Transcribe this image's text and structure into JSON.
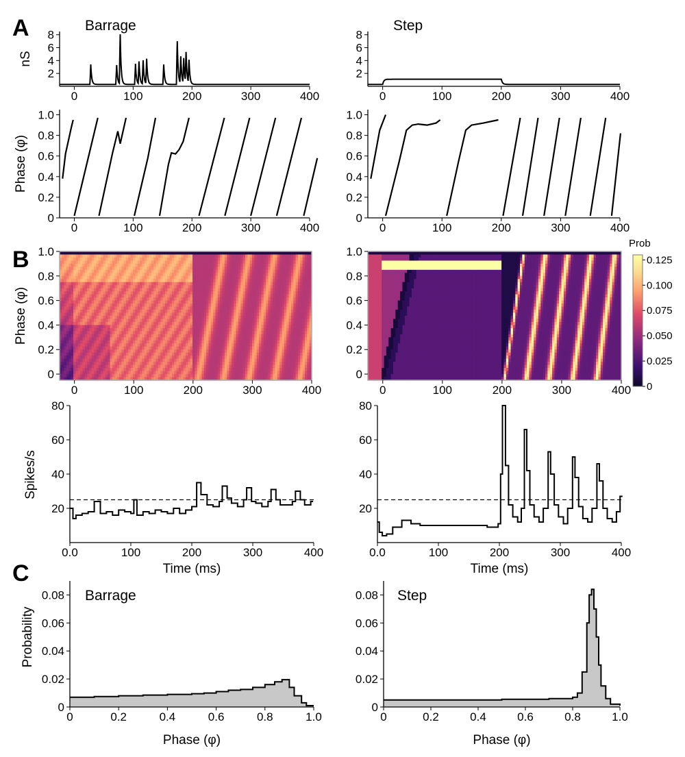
{
  "figure": {
    "panel_labels": [
      "A",
      "B",
      "C"
    ],
    "colorbar": {
      "title": "Prob",
      "ticks": [
        "0.125",
        "0.100",
        "0.075",
        "0.050",
        "0.025",
        "0"
      ],
      "range": [
        0,
        0.13
      ]
    },
    "colors": {
      "line": "#000000",
      "fill": "#c8c8c8",
      "heat_low": "#0d0829",
      "heat_high": "#fcffa4"
    }
  },
  "chart_data": [
    {
      "id": "A-cond-barrage",
      "type": "line",
      "title": "Barrage",
      "ylabel": "nS",
      "xlim": [
        -25,
        400
      ],
      "ylim": [
        0,
        8.5
      ],
      "xticks": [
        "0",
        "100",
        "200",
        "300",
        "400"
      ],
      "yticks": [
        "2",
        "4",
        "6",
        "8"
      ],
      "pulses": [
        {
          "t": 28,
          "a": 3.4
        },
        {
          "t": 72,
          "a": 3.3
        },
        {
          "t": 78,
          "a": 8.0
        },
        {
          "t": 104,
          "a": 3.5
        },
        {
          "t": 110,
          "a": 3.8
        },
        {
          "t": 117,
          "a": 4.0
        },
        {
          "t": 123,
          "a": 4.2
        },
        {
          "t": 152,
          "a": 3.4
        },
        {
          "t": 175,
          "a": 7.0
        },
        {
          "t": 181,
          "a": 4.5
        },
        {
          "t": 186,
          "a": 4.2
        },
        {
          "t": 190,
          "a": 5.0
        },
        {
          "t": 195,
          "a": 3.9
        }
      ]
    },
    {
      "id": "A-cond-step",
      "type": "line",
      "title": "Step",
      "ylabel": "",
      "xlim": [
        -25,
        400
      ],
      "ylim": [
        0,
        8.5
      ],
      "xticks": [
        "0",
        "100",
        "200",
        "300",
        "400"
      ],
      "yticks": [
        "2",
        "4",
        "6",
        "8"
      ],
      "step": {
        "start": 0,
        "end": 200,
        "level": 1.1
      }
    },
    {
      "id": "A-phase-barrage",
      "type": "line",
      "ylabel": "Phase (φ)",
      "xlim": [
        -25,
        400
      ],
      "ylim": [
        0,
        1.05
      ],
      "xticks": [
        "0",
        "100",
        "200",
        "300",
        "400"
      ],
      "yticks": [
        "0",
        "0.2",
        "0.4",
        "0.6",
        "0.8",
        "1.0"
      ],
      "segments": [
        [
          [
            -20,
            0.38
          ],
          [
            -15,
            0.62
          ],
          [
            -5,
            0.88
          ],
          [
            -2,
            0.95
          ]
        ],
        [
          [
            0,
            0.02
          ],
          [
            40,
            0.97
          ]
        ],
        [
          [
            42,
            0.02
          ],
          [
            65,
            0.63
          ],
          [
            74,
            0.84
          ],
          [
            78,
            0.72
          ],
          [
            88,
            0.97
          ]
        ],
        [
          [
            102,
            0.02
          ],
          [
            125,
            0.58
          ],
          [
            138,
            0.97
          ]
        ],
        [
          [
            145,
            0.02
          ],
          [
            160,
            0.52
          ],
          [
            165,
            0.63
          ],
          [
            172,
            0.62
          ],
          [
            178,
            0.66
          ],
          [
            185,
            0.74
          ],
          [
            195,
            0.97
          ]
        ],
        [
          [
            212,
            0.02
          ],
          [
            255,
            0.97
          ]
        ],
        [
          [
            256,
            0.02
          ],
          [
            298,
            0.97
          ]
        ],
        [
          [
            300,
            0.02
          ],
          [
            342,
            0.97
          ]
        ],
        [
          [
            344,
            0.02
          ],
          [
            386,
            0.97
          ]
        ],
        [
          [
            390,
            0.02
          ],
          [
            413,
            0.58
          ]
        ]
      ]
    },
    {
      "id": "A-phase-step",
      "type": "line",
      "ylabel": "",
      "xlim": [
        -25,
        400
      ],
      "ylim": [
        0,
        1.05
      ],
      "xticks": [
        "0",
        "100",
        "200",
        "300",
        "400"
      ],
      "yticks": [
        "0",
        "0.2",
        "0.4",
        "0.6",
        "0.8",
        "1.0"
      ],
      "segments": [
        [
          [
            -20,
            0.38
          ],
          [
            -5,
            0.85
          ],
          [
            5,
            1.0
          ]
        ],
        [
          [
            5,
            0.02
          ],
          [
            28,
            0.55
          ],
          [
            40,
            0.85
          ],
          [
            50,
            0.9
          ],
          [
            60,
            0.91
          ],
          [
            75,
            0.9
          ],
          [
            90,
            0.92
          ],
          [
            97,
            0.95
          ]
        ],
        [
          [
            108,
            0.02
          ],
          [
            128,
            0.55
          ],
          [
            140,
            0.85
          ],
          [
            150,
            0.9
          ],
          [
            170,
            0.92
          ],
          [
            195,
            0.95
          ]
        ],
        [
          [
            203,
            0.02
          ],
          [
            232,
            0.97
          ]
        ],
        [
          [
            236,
            0.02
          ],
          [
            262,
            0.97
          ]
        ],
        [
          [
            272,
            0.02
          ],
          [
            298,
            0.97
          ]
        ],
        [
          [
            308,
            0.02
          ],
          [
            334,
            0.97
          ]
        ],
        [
          [
            350,
            0.02
          ],
          [
            376,
            0.97
          ]
        ],
        [
          [
            386,
            0.02
          ],
          [
            401,
            0.82
          ]
        ]
      ]
    },
    {
      "id": "B-heat-barrage",
      "type": "heatmap",
      "ylabel": "Phase (φ)",
      "xlim": [
        -25,
        400
      ],
      "ylim": [
        -0.05,
        1.0
      ],
      "xticks": [
        "0",
        "100",
        "200",
        "300",
        "400"
      ],
      "yticks": [
        "0",
        "0.2",
        "0.4",
        "0.6",
        "0.8",
        "1.0"
      ],
      "stimulus": "barrage",
      "bands_start": [
        210,
        253,
        296,
        339,
        382
      ]
    },
    {
      "id": "B-heat-step",
      "type": "heatmap",
      "ylabel": "",
      "xlim": [
        -25,
        400
      ],
      "ylim": [
        -0.05,
        1.0
      ],
      "xticks": [
        "0",
        "100",
        "200",
        "300",
        "400"
      ],
      "yticks": [
        "0",
        "0.2",
        "0.4",
        "0.6",
        "0.8",
        "1.0"
      ],
      "stimulus": "step",
      "bands_start": [
        205,
        242,
        280,
        320,
        360
      ]
    },
    {
      "id": "B-rate-barrage",
      "type": "line",
      "ylabel": "Spikes/s",
      "xlabel": "Time (ms)",
      "xlim": [
        0,
        400
      ],
      "ylim": [
        0,
        80
      ],
      "xticks": [
        "0.0",
        "100",
        "200",
        "300",
        "400"
      ],
      "yticks": [
        "20",
        "40",
        "60",
        "80"
      ],
      "reference": 25,
      "x": [
        0,
        5,
        10,
        20,
        30,
        40,
        50,
        60,
        70,
        80,
        90,
        100,
        105,
        110,
        120,
        130,
        140,
        150,
        160,
        170,
        180,
        190,
        200,
        208,
        215,
        225,
        235,
        245,
        250,
        258,
        265,
        275,
        285,
        290,
        298,
        305,
        315,
        325,
        330,
        338,
        345,
        355,
        365,
        370,
        378,
        385,
        395
      ],
      "y": [
        20,
        14,
        16,
        17,
        18,
        24,
        17,
        18,
        16,
        19,
        18,
        17,
        25,
        16,
        18,
        17,
        19,
        18,
        17,
        20,
        17,
        19,
        21,
        35,
        28,
        22,
        21,
        24,
        33,
        26,
        23,
        21,
        25,
        32,
        24,
        23,
        21,
        24,
        31,
        25,
        22,
        22,
        24,
        30,
        25,
        22,
        24
      ]
    },
    {
      "id": "B-rate-step",
      "type": "line",
      "ylabel": "",
      "xlabel": "Time (ms)",
      "xlim": [
        0,
        400
      ],
      "ylim": [
        0,
        80
      ],
      "xticks": [
        "0.0",
        "100",
        "200",
        "300",
        "400"
      ],
      "yticks": [
        "20",
        "40",
        "60",
        "80"
      ],
      "reference": 25,
      "x": [
        0,
        3,
        8,
        15,
        25,
        40,
        55,
        70,
        90,
        120,
        150,
        180,
        198,
        202,
        205,
        210,
        215,
        222,
        230,
        236,
        241,
        245,
        250,
        257,
        265,
        272,
        280,
        284,
        290,
        297,
        305,
        312,
        320,
        324,
        330,
        337,
        345,
        352,
        360,
        364,
        370,
        377,
        385,
        392,
        398
      ],
      "y": [
        12,
        6,
        4,
        5,
        9,
        13,
        11,
        10,
        10,
        10,
        10,
        9,
        11,
        40,
        80,
        45,
        22,
        15,
        12,
        20,
        66,
        42,
        22,
        15,
        12,
        20,
        53,
        40,
        22,
        15,
        11,
        20,
        50,
        38,
        21,
        14,
        12,
        20,
        46,
        36,
        20,
        14,
        12,
        18,
        27
      ]
    },
    {
      "id": "C-hist-barrage",
      "type": "area",
      "title": "Barrage",
      "ylabel": "Probability",
      "xlabel": "Phase (φ)",
      "xlim": [
        0,
        1.0
      ],
      "ylim": [
        0,
        0.09
      ],
      "xticks": [
        "0",
        "0.2",
        "0.4",
        "0.6",
        "0.8",
        "1.0"
      ],
      "yticks": [
        "0",
        "0.02",
        "0.04",
        "0.06",
        "0.08"
      ],
      "x": [
        0.0,
        0.1,
        0.2,
        0.3,
        0.4,
        0.5,
        0.55,
        0.6,
        0.65,
        0.7,
        0.75,
        0.8,
        0.84,
        0.87,
        0.9,
        0.92,
        0.95,
        0.97,
        1.0
      ],
      "y": [
        0.007,
        0.0075,
        0.008,
        0.0085,
        0.009,
        0.0095,
        0.01,
        0.011,
        0.012,
        0.0125,
        0.014,
        0.016,
        0.018,
        0.0195,
        0.014,
        0.008,
        0.003,
        0.001,
        0.001
      ]
    },
    {
      "id": "C-hist-step",
      "type": "area",
      "title": "Step",
      "ylabel": "",
      "xlabel": "Phase (φ)",
      "xlim": [
        0,
        1.0
      ],
      "ylim": [
        0,
        0.09
      ],
      "xticks": [
        "0",
        "0.2",
        "0.4",
        "0.6",
        "0.8",
        "1.0"
      ],
      "yticks": [
        "0",
        "0.02",
        "0.04",
        "0.06",
        "0.08"
      ],
      "x": [
        0.0,
        0.1,
        0.2,
        0.3,
        0.4,
        0.5,
        0.6,
        0.7,
        0.78,
        0.8,
        0.82,
        0.84,
        0.86,
        0.87,
        0.88,
        0.89,
        0.9,
        0.91,
        0.92,
        0.94,
        0.96,
        1.0
      ],
      "y": [
        0.005,
        0.005,
        0.005,
        0.005,
        0.005,
        0.0055,
        0.0055,
        0.006,
        0.006,
        0.007,
        0.01,
        0.025,
        0.06,
        0.08,
        0.084,
        0.07,
        0.05,
        0.03,
        0.015,
        0.006,
        0.002,
        0.001
      ]
    }
  ]
}
